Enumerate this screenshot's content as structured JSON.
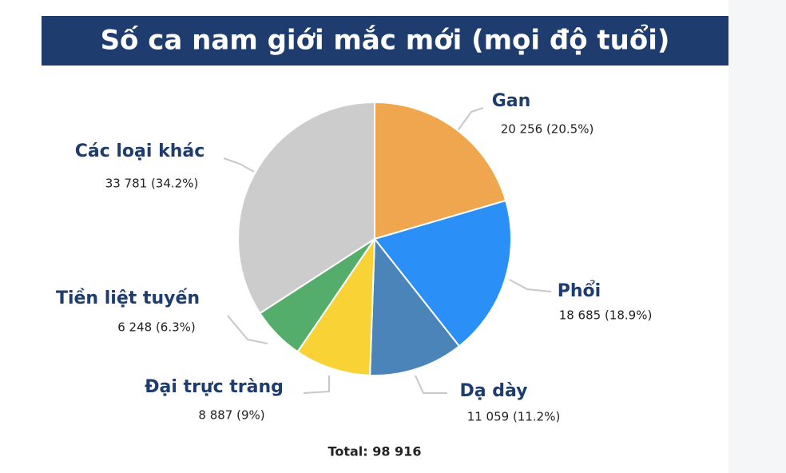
{
  "chart_data": {
    "type": "pie",
    "title": "Số ca nam giới mắc mới (mọi độ tuổi)",
    "categories": [
      "Gan",
      "Phổi",
      "Dạ dày",
      "Đại trực tràng",
      "Tiền liệt tuyến",
      "Các loại khác"
    ],
    "values": [
      20256,
      18685,
      11059,
      8887,
      6248,
      33781
    ],
    "value_labels": [
      "20 256 (20.5%)",
      "18 685 (18.9%)",
      "11 059 (11.2%)",
      "8 887 (9%)",
      "6 248 (6.3%)",
      "33 781 (34.2%)"
    ],
    "colors": [
      "#f0a64f",
      "#2a8ff7",
      "#4a84b8",
      "#f9d335",
      "#55ad6b",
      "#cccccc"
    ],
    "total_label": "Total: 98 916"
  }
}
